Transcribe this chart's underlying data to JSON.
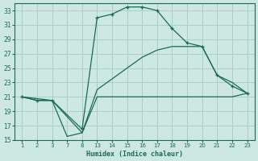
{
  "xlabel": "Humidex (Indice chaleur)",
  "bg_color": "#cce8e0",
  "grid_color": "#aacfc8",
  "line_color": "#1a6b5a",
  "xlabels": [
    "1",
    "2",
    "3",
    "7",
    "8",
    "13",
    "14",
    "15",
    "16",
    "17",
    "18",
    "19",
    "20",
    "21",
    "22",
    "23"
  ],
  "ylim": [
    15,
    34
  ],
  "yticks": [
    15,
    17,
    19,
    21,
    23,
    25,
    27,
    29,
    31,
    33
  ],
  "series": [
    {
      "xi": [
        0,
        1,
        2,
        3,
        4,
        5,
        6,
        7,
        8,
        9,
        10,
        11,
        12,
        13,
        14,
        15
      ],
      "y": [
        21,
        20.5,
        20.5,
        15.5,
        16,
        21,
        21,
        21,
        21,
        21,
        21,
        21,
        21,
        21,
        21,
        21.5
      ],
      "marker": false
    },
    {
      "xi": [
        0,
        2,
        4,
        5,
        6,
        7,
        8,
        9,
        10,
        11,
        12,
        13,
        14,
        15
      ],
      "y": [
        21,
        20.5,
        16,
        22,
        23.5,
        25,
        26.5,
        27.5,
        28,
        28,
        28,
        24,
        23,
        21.5
      ],
      "marker": false
    },
    {
      "xi": [
        0,
        1,
        2,
        4,
        5,
        6,
        7,
        8,
        9,
        10,
        11,
        12,
        13,
        14,
        15
      ],
      "y": [
        21,
        20.5,
        20.5,
        16.5,
        32,
        32.5,
        33.5,
        33.5,
        33,
        30.5,
        28.5,
        28,
        24,
        22.5,
        21.5
      ],
      "marker": true
    }
  ]
}
